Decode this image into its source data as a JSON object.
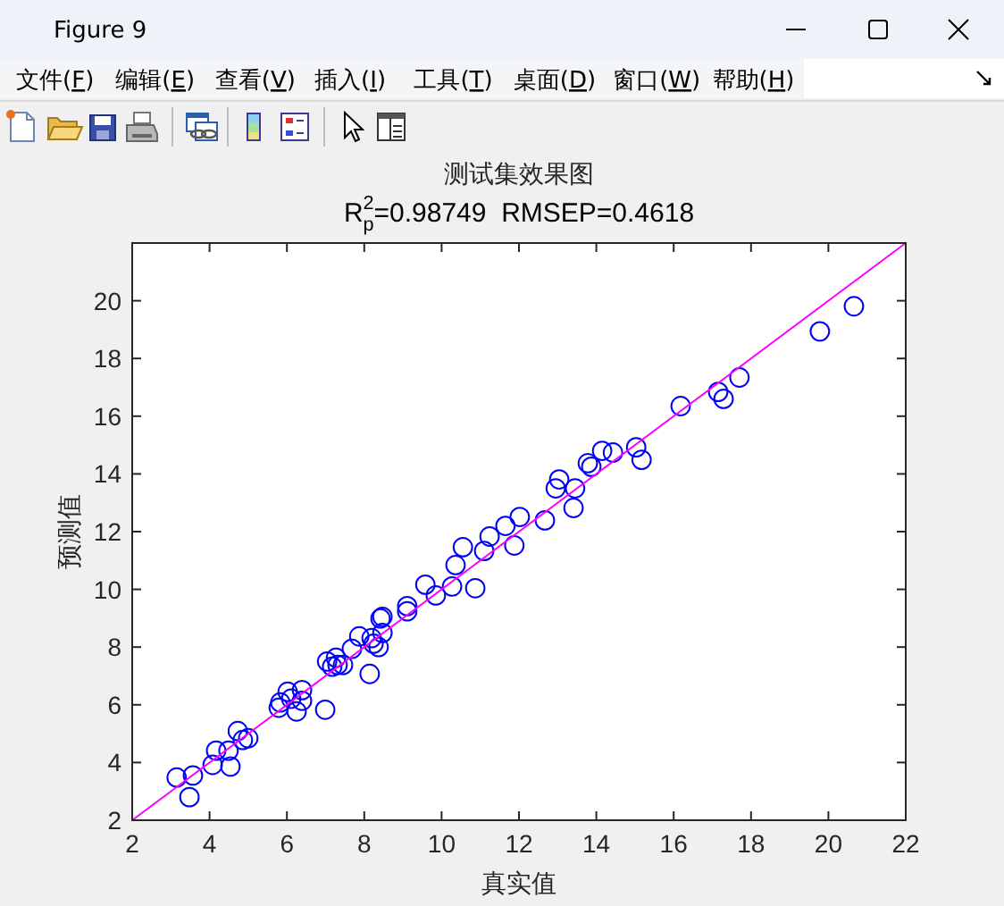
{
  "chart_data": {
    "type": "scatter",
    "title": "测试集效果图",
    "subtitle": "R$_{p}$$^{2}$=0.98749  RMSEP=0.4618",
    "xlabel": "真实值",
    "ylabel": "预测值",
    "annotations": [
      "Figure 9",
      "文件(F)",
      "编辑(E)",
      "查看(V)",
      "插入(I)",
      "工具(T)",
      "桌面(D)",
      "窗口(W)",
      "帮助(H)"
    ],
    "xlim": [
      2,
      22
    ],
    "ylim": [
      2,
      22
    ],
    "xticks": [
      2,
      4,
      6,
      8,
      10,
      12,
      14,
      16,
      18,
      20,
      22
    ],
    "yticks": [
      2,
      4,
      6,
      8,
      10,
      12,
      14,
      16,
      18,
      20
    ],
    "series": [
      {
        "color": "#0000ff",
        "marker": "circle",
        "x": [
          3.15,
          3.48,
          3.57,
          4.08,
          4.17,
          4.49,
          4.54,
          4.73,
          4.86,
          5.0,
          5.79,
          5.83,
          6.02,
          6.11,
          6.25,
          6.39,
          6.39,
          6.99,
          7.04,
          7.27,
          7.31,
          7.17,
          7.45,
          7.68,
          7.87,
          8.14,
          8.19,
          8.24,
          8.37,
          8.42,
          8.47,
          8.47,
          9.11,
          9.11,
          9.58,
          9.85,
          10.27,
          10.36,
          10.55,
          10.87,
          11.1,
          11.24,
          11.65,
          11.88,
          12.02,
          12.67,
          12.95,
          13.04,
          13.41,
          13.45,
          13.78,
          13.87,
          14.15,
          14.43,
          15.03,
          15.17,
          16.18,
          17.15,
          17.29,
          17.7,
          19.78,
          20.66
        ],
        "values": [
          3.48,
          2.8,
          3.55,
          3.92,
          4.41,
          4.41,
          3.86,
          5.09,
          4.78,
          4.84,
          5.9,
          6.08,
          6.45,
          6.21,
          5.77,
          6.51,
          6.14,
          5.83,
          7.5,
          7.63,
          7.38,
          7.32,
          7.38,
          7.94,
          8.37,
          7.07,
          8.31,
          8.12,
          8.0,
          8.99,
          9.05,
          8.49,
          9.42,
          9.24,
          10.16,
          9.79,
          10.1,
          10.84,
          11.46,
          10.04,
          11.33,
          11.83,
          12.2,
          11.52,
          12.51,
          12.39,
          13.5,
          13.81,
          12.82,
          13.5,
          14.37,
          14.25,
          14.8,
          14.74,
          14.92,
          14.49,
          16.35,
          16.84,
          16.6,
          17.34,
          18.94,
          19.81
        ]
      },
      {
        "type": "line",
        "color": "#ff00ff",
        "marker": "none",
        "x": [
          2,
          22
        ],
        "values": [
          2,
          22
        ]
      }
    ]
  }
}
